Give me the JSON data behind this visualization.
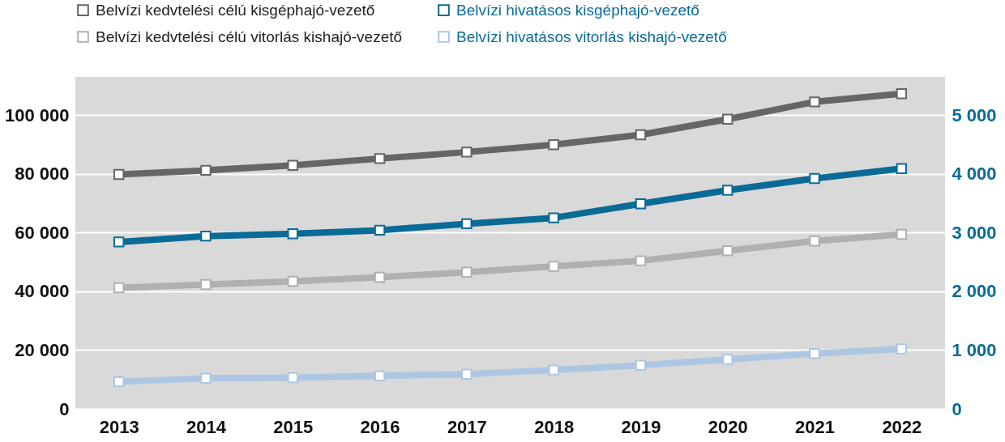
{
  "chart_data": {
    "type": "line",
    "categories": [
      "2013",
      "2014",
      "2015",
      "2016",
      "2017",
      "2018",
      "2019",
      "2020",
      "2021",
      "2022"
    ],
    "series": [
      {
        "name": "Belvízi kedvtelési célú kisgéphajó-vezető",
        "color": "#666666",
        "values": [
          79800,
          81200,
          82900,
          85200,
          87400,
          89900,
          93300,
          98600,
          104500,
          107300
        ]
      },
      {
        "name": "Belvízi kedvtelési célú vitorlás kishajó-vezető",
        "color": "#b0b0b0",
        "values": [
          41200,
          42300,
          43400,
          44800,
          46500,
          48500,
          50400,
          53800,
          57100,
          59400
        ]
      },
      {
        "name": "Belvízi hivatásos kisgéphajó-vezető",
        "color": "#0a6b96",
        "axis": "y2",
        "values": [
          2840,
          2940,
          2980,
          3040,
          3150,
          3250,
          3490,
          3720,
          3920,
          4090
        ]
      },
      {
        "name": "Belvízi hivatásos vitorlás kishajó-vezető",
        "color": "#adc6e3",
        "axis": "y2",
        "values": [
          460,
          520,
          530,
          560,
          590,
          660,
          740,
          840,
          940,
          1020
        ]
      }
    ],
    "ylim": [
      0,
      113000
    ],
    "yticks": [
      0,
      {
        "value": 20000,
        "label": "20 000"
      },
      {
        "value": 40000,
        "label": "40 000"
      },
      {
        "value": 60000,
        "label": "60 000"
      },
      {
        "value": 80000,
        "label": "80 000"
      },
      {
        "value": 100000,
        "label": "100 000"
      }
    ],
    "y2lim": [
      0,
      5650
    ],
    "y2ticks": [
      0,
      {
        "value": 1000,
        "label": "1 000"
      },
      {
        "value": 2000,
        "label": "2 000"
      },
      {
        "value": 3000,
        "label": "3 000"
      },
      {
        "value": 4000,
        "label": "4 000"
      },
      {
        "value": 5000,
        "label": "5 000"
      }
    ],
    "grid": "y",
    "legend": "top",
    "marker": "square",
    "line_style": "solid"
  }
}
